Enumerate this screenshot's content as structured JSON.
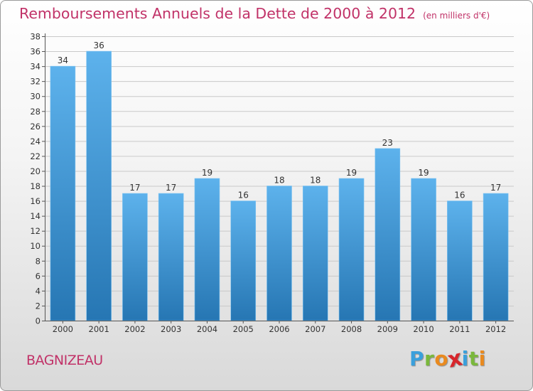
{
  "header": {
    "title": "Remboursements Annuels de la Dette de 2000 à 2012",
    "unit": "(en milliers d'€)"
  },
  "footer": {
    "commune": "BAGNIZEAU",
    "logo_letters": [
      {
        "char": "P",
        "color": "#3aa0dc"
      },
      {
        "char": "r",
        "color": "#7ab83c"
      },
      {
        "char": "o",
        "color": "#e98a1f"
      },
      {
        "char": "x",
        "color": "#d7262c"
      },
      {
        "char": "i",
        "color": "#3aa0dc"
      },
      {
        "char": "t",
        "color": "#7ab83c"
      },
      {
        "char": "i",
        "color": "#e98a1f"
      }
    ]
  },
  "colors": {
    "title": "#c13268",
    "bar_top": "#5db2ec",
    "bar_bottom": "#2676b3",
    "grid": "#c9c9c9",
    "axis": "#555555"
  },
  "chart_data": {
    "type": "bar",
    "title": "Remboursements Annuels de la Dette de 2000 à 2012",
    "xlabel": "",
    "ylabel": "",
    "categories": [
      "2000",
      "2001",
      "2002",
      "2003",
      "2004",
      "2005",
      "2006",
      "2007",
      "2008",
      "2009",
      "2010",
      "2011",
      "2012"
    ],
    "values": [
      34,
      36,
      17,
      17,
      19,
      16,
      18,
      18,
      19,
      23,
      19,
      16,
      17
    ],
    "ylim": [
      0,
      38
    ],
    "ytick_step": 2,
    "grid": true,
    "data_labels": true
  }
}
